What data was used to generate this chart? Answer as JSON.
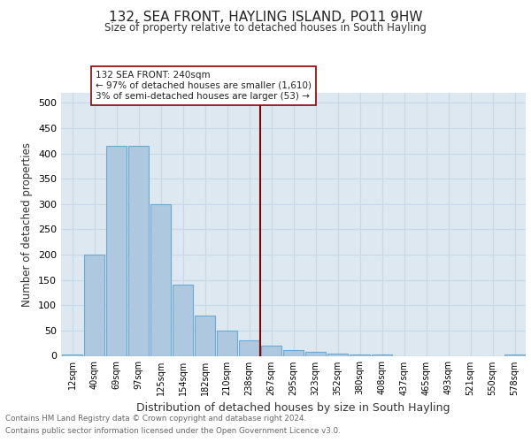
{
  "title": "132, SEA FRONT, HAYLING ISLAND, PO11 9HW",
  "subtitle": "Size of property relative to detached houses in South Hayling",
  "xlabel": "Distribution of detached houses by size in South Hayling",
  "ylabel": "Number of detached properties",
  "categories": [
    "12sqm",
    "40sqm",
    "69sqm",
    "97sqm",
    "125sqm",
    "154sqm",
    "182sqm",
    "210sqm",
    "238sqm",
    "267sqm",
    "295sqm",
    "323sqm",
    "352sqm",
    "380sqm",
    "408sqm",
    "437sqm",
    "465sqm",
    "493sqm",
    "521sqm",
    "550sqm",
    "578sqm"
  ],
  "values": [
    2,
    200,
    415,
    415,
    300,
    140,
    80,
    50,
    30,
    20,
    12,
    8,
    5,
    3,
    2,
    0,
    0,
    0,
    0,
    0,
    2
  ],
  "bar_color": "#aec8e0",
  "bar_edgecolor": "#6aaad4",
  "bar_linewidth": 0.8,
  "grid_color": "#c8d8e8",
  "background_color": "#dde8f0",
  "vline_color": "#8b0000",
  "annotation_line1": "132 SEA FRONT: 240sqm",
  "annotation_line2": "← 97% of detached houses are smaller (1,610)",
  "annotation_line3": "3% of semi-detached houses are larger (53) →",
  "ylim": [
    0,
    520
  ],
  "yticks": [
    0,
    50,
    100,
    150,
    200,
    250,
    300,
    350,
    400,
    450,
    500
  ],
  "footer_line1": "Contains HM Land Registry data © Crown copyright and database right 2024.",
  "footer_line2": "Contains public sector information licensed under the Open Government Licence v3.0."
}
